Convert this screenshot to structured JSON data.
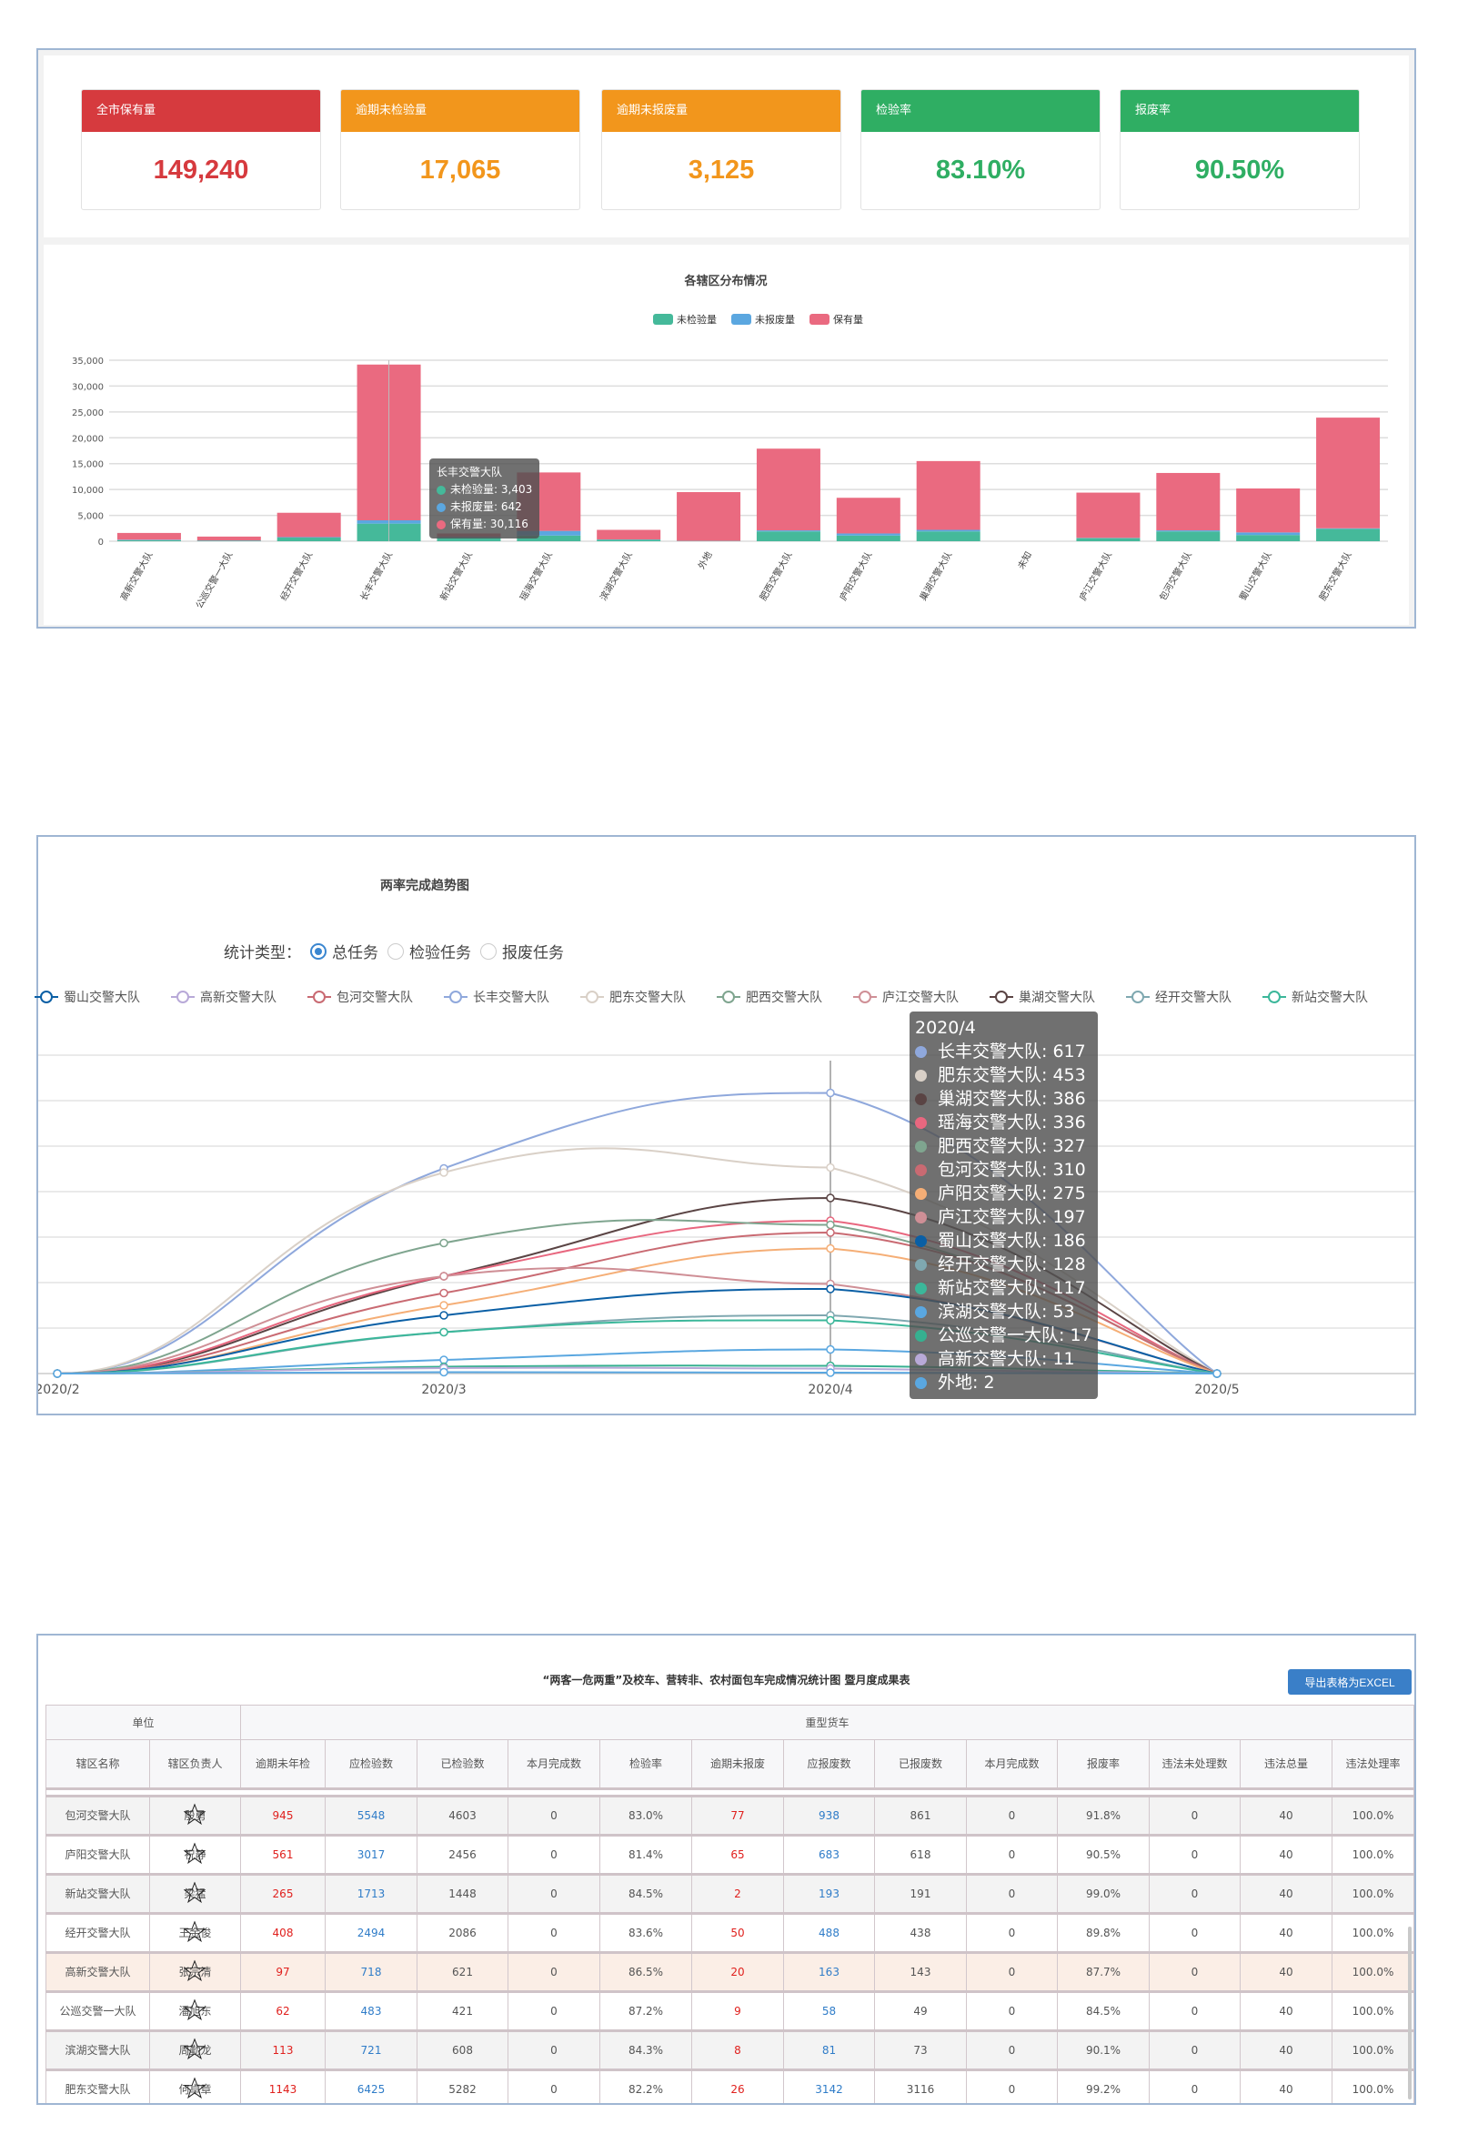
{
  "kpis": [
    {
      "label": "全市保有量",
      "value": "149,240",
      "color": "#d63a3e"
    },
    {
      "label": "逾期未检验量",
      "value": "17,065",
      "color": "#f2961c"
    },
    {
      "label": "逾期未报废量",
      "value": "3,125",
      "color": "#f2961c"
    },
    {
      "label": "检验率",
      "value": "83.10%",
      "color": "#2fae63"
    },
    {
      "label": "报废率",
      "value": "90.50%",
      "color": "#2fae63"
    }
  ],
  "chart_data": [
    {
      "type": "bar",
      "stacked": true,
      "title": "各辖区分布情况",
      "legend_position": "top-center",
      "grid": true,
      "ylim": [
        0,
        35000
      ],
      "yticks": [
        "0",
        "5,000",
        "10,000",
        "15,000",
        "20,000",
        "25,000",
        "30,000",
        "35,000"
      ],
      "categories": [
        "高新交警大队",
        "公巡交警一大队",
        "经开交警大队",
        "长丰交警大队",
        "新站交警大队",
        "瑶海交警大队",
        "滨湖交警大队",
        "外地",
        "肥西交警大队",
        "庐阳交警大队",
        "巢湖交警大队",
        "未知",
        "庐江交警大队",
        "包河交警大队",
        "蜀山交警大队",
        "肥东交警大队"
      ],
      "series": [
        {
          "name": "未检验量",
          "color": "#45b99a",
          "values": [
            200,
            100,
            700,
            3403,
            700,
            1100,
            300,
            50,
            1900,
            1100,
            1900,
            0,
            600,
            1900,
            1200,
            2400
          ]
        },
        {
          "name": "未报废量",
          "color": "#5ba7e0",
          "values": [
            100,
            50,
            100,
            642,
            150,
            900,
            50,
            20,
            200,
            400,
            300,
            0,
            50,
            200,
            500,
            100
          ]
        },
        {
          "name": "保有量",
          "color": "#ea6a80",
          "values": [
            1300,
            750,
            4700,
            30116,
            650,
            11300,
            1850,
            9430,
            15800,
            6900,
            13300,
            0,
            8750,
            11100,
            8500,
            21400
          ]
        }
      ],
      "tooltip": {
        "title": "长丰交警大队",
        "rows": [
          {
            "label": "未检验量",
            "value": "3,403",
            "color": "#45b99a"
          },
          {
            "label": "未报废量",
            "value": "642",
            "color": "#5ba7e0"
          },
          {
            "label": "保有量",
            "value": "30,116",
            "color": "#ea6a80"
          }
        ]
      }
    },
    {
      "type": "line",
      "smooth": true,
      "title": "两率完成趋势图",
      "legend_position": "top",
      "grid": true,
      "ylim": [
        0,
        700
      ],
      "x": [
        "2020/2",
        "2020/3",
        "2020/4",
        "2020/5"
      ],
      "series": [
        {
          "name": "长丰交警大队",
          "color": "#8fa8dc",
          "values": [
            0,
            451,
            617,
            0
          ]
        },
        {
          "name": "肥东交警大队",
          "color": "#d9d0c7",
          "values": [
            0,
            442,
            453,
            0
          ]
        },
        {
          "name": "巢湖交警大队",
          "color": "#5a4444",
          "values": [
            0,
            214,
            386,
            0
          ]
        },
        {
          "name": "瑶海交警大队",
          "color": "#e8677f",
          "values": [
            0,
            214,
            336,
            0
          ]
        },
        {
          "name": "肥西交警大队",
          "color": "#7fa58f",
          "values": [
            0,
            287,
            327,
            0
          ]
        },
        {
          "name": "包河交警大队",
          "color": "#c96a72",
          "values": [
            0,
            177,
            310,
            0
          ]
        },
        {
          "name": "庐阳交警大队",
          "color": "#f5ae76",
          "values": [
            0,
            150,
            275,
            0
          ]
        },
        {
          "name": "庐江交警大队",
          "color": "#cf8f96",
          "values": [
            0,
            214,
            197,
            0
          ]
        },
        {
          "name": "蜀山交警大队",
          "color": "#0a5fa5",
          "values": [
            0,
            128,
            186,
            0
          ]
        },
        {
          "name": "经开交警大队",
          "color": "#7fa8b0",
          "values": [
            0,
            91,
            128,
            0
          ]
        },
        {
          "name": "新站交警大队",
          "color": "#3bb79a",
          "values": [
            0,
            91,
            117,
            0
          ]
        },
        {
          "name": "滨湖交警大队",
          "color": "#5aa7e0",
          "values": [
            0,
            30,
            53,
            0
          ]
        },
        {
          "name": "公巡交警一大队",
          "color": "#36b090",
          "values": [
            0,
            15,
            17,
            0
          ]
        },
        {
          "name": "高新交警大队",
          "color": "#b8a9d8",
          "values": [
            0,
            12,
            11,
            0
          ]
        },
        {
          "name": "外地",
          "color": "#5aa7e0",
          "values": [
            0,
            3,
            2,
            0
          ]
        }
      ],
      "legend_visible": [
        "蜀山交警大队",
        "高新交警大队",
        "包河交警大队",
        "长丰交警大队",
        "肥东交警大队",
        "肥西交警大队",
        "庐江交警大队",
        "巢湖交警大队",
        "经开交警大队",
        "新站交警大队"
      ],
      "tooltip": {
        "title": "2020/4"
      }
    }
  ],
  "trend": {
    "filter_label": "统计类型：",
    "options": [
      {
        "label": "总任务",
        "selected": true
      },
      {
        "label": "检验任务",
        "selected": false
      },
      {
        "label": "报废任务",
        "selected": false
      }
    ]
  },
  "table": {
    "title": "“两客一危两重”及校车、营转非、农村面包车完成情况统计图 暨月度成果表",
    "export_label": "导出表格为EXCEL",
    "group_headers": [
      "单位",
      "重型货车"
    ],
    "columns": [
      "辖区名称",
      "辖区负责人",
      "逾期未年检",
      "应检验数",
      "已检验数",
      "本月完成数",
      "检验率",
      "逾期未报废",
      "应报废数",
      "已报废数",
      "本月完成数",
      "报废率",
      "违法未处理数",
      "违法总量",
      "违法处理率"
    ],
    "rows": [
      [
        "包河交警大队",
        "殷勇",
        "945",
        "5548",
        "4603",
        "0",
        "83.0%",
        "77",
        "938",
        "861",
        "0",
        "91.8%",
        "0",
        "40",
        "100.0%"
      ],
      [
        "庐阳交警大队",
        "祝静",
        "561",
        "3017",
        "2456",
        "0",
        "81.4%",
        "65",
        "683",
        "618",
        "0",
        "90.5%",
        "0",
        "40",
        "100.0%"
      ],
      [
        "新站交警大队",
        "梁猛",
        "265",
        "1713",
        "1448",
        "0",
        "84.5%",
        "2",
        "193",
        "191",
        "0",
        "99.0%",
        "0",
        "40",
        "100.0%"
      ],
      [
        "经开交警大队",
        "王金俊",
        "408",
        "2494",
        "2086",
        "0",
        "83.6%",
        "50",
        "488",
        "438",
        "0",
        "89.8%",
        "0",
        "40",
        "100.0%"
      ],
      [
        "高新交警大队",
        "张宗清",
        "97",
        "718",
        "621",
        "0",
        "86.5%",
        "20",
        "163",
        "143",
        "0",
        "87.7%",
        "0",
        "40",
        "100.0%"
      ],
      [
        "公巡交警一大队",
        "潘旭东",
        "62",
        "483",
        "421",
        "0",
        "87.2%",
        "9",
        "58",
        "49",
        "0",
        "84.5%",
        "0",
        "40",
        "100.0%"
      ],
      [
        "滨湖交警大队",
        "周勤龙",
        "113",
        "721",
        "608",
        "0",
        "84.3%",
        "8",
        "81",
        "73",
        "0",
        "90.1%",
        "0",
        "40",
        "100.0%"
      ],
      [
        "肥东交警大队",
        "何卓章",
        "1143",
        "6425",
        "5282",
        "0",
        "82.2%",
        "26",
        "3142",
        "3116",
        "0",
        "99.2%",
        "0",
        "40",
        "100.0%"
      ]
    ],
    "highlight_row": 4
  }
}
